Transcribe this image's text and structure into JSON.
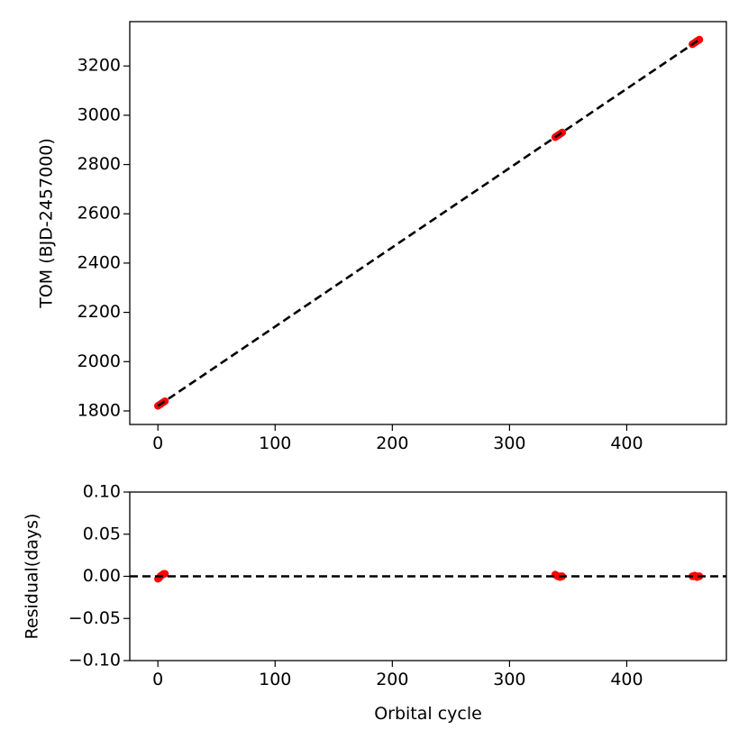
{
  "chart_data": [
    {
      "type": "scatter",
      "title": "",
      "xlabel": "",
      "ylabel": "TOM (BJD-2457000)",
      "xlim": [
        -24,
        485
      ],
      "ylim": [
        1745,
        3380
      ],
      "xticks": [
        0,
        100,
        200,
        300,
        400
      ],
      "yticks": [
        1800,
        2000,
        2200,
        2400,
        2600,
        2800,
        3000,
        3200
      ],
      "grid": false,
      "legend": "none",
      "series": [
        {
          "kind": "points",
          "color": "#ff0000",
          "x": [
            0,
            1,
            2,
            3,
            4,
            5,
            6,
            339,
            340,
            341,
            342,
            343,
            344,
            345,
            456,
            457,
            458,
            459,
            460,
            461,
            462
          ],
          "y": [
            1820.3,
            1823.5,
            1826.7,
            1829.9,
            1833.1,
            1836.3,
            1839.5,
            2910.9,
            2914.1,
            2917.3,
            2920.5,
            2923.7,
            2926.9,
            2930.1,
            3288.0,
            3291.2,
            3294.4,
            3297.6,
            3300.8,
            3304.0,
            3307.2
          ]
        },
        {
          "kind": "fit-line",
          "color": "#000000",
          "style": "dashed",
          "x": [
            0,
            462
          ],
          "y": [
            1820.3,
            3307.2
          ]
        }
      ]
    },
    {
      "type": "scatter",
      "title": "",
      "xlabel": "Orbital cycle",
      "ylabel": "Residual(days)",
      "xlim": [
        -24,
        485
      ],
      "ylim": [
        -0.1,
        0.1
      ],
      "xticks": [
        0,
        100,
        200,
        300,
        400
      ],
      "yticks": [
        -0.1,
        -0.05,
        0.0,
        0.05,
        0.1
      ],
      "yticklabels": [
        "−0.10",
        "−0.05",
        "0.00",
        "0.05",
        "0.10"
      ],
      "grid": false,
      "legend": "none",
      "series": [
        {
          "kind": "points",
          "color": "#ff0000",
          "x": [
            0,
            1,
            2,
            3,
            4,
            5,
            6,
            339,
            340,
            341,
            342,
            343,
            344,
            345,
            456,
            457,
            458,
            459,
            460,
            461,
            462
          ],
          "y": [
            -0.003,
            -0.002,
            0.0,
            0.001,
            0.002,
            0.003,
            0.003,
            0.002,
            0.001,
            0.0,
            0.0,
            -0.001,
            0.0,
            0.0,
            0.0,
            0.0,
            0.001,
            0.0,
            -0.001,
            0.0,
            0.0
          ]
        },
        {
          "kind": "zero-line",
          "color": "#000000",
          "style": "dashed",
          "x": [
            -24,
            485
          ],
          "y": [
            0,
            0
          ]
        }
      ]
    }
  ]
}
